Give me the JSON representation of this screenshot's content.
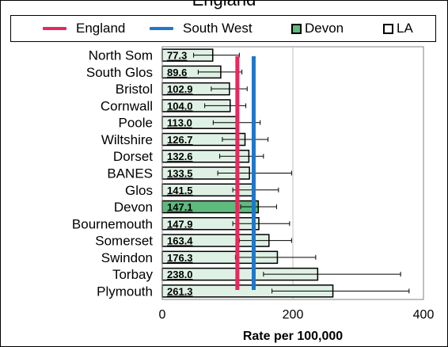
{
  "chart_data": {
    "type": "bar",
    "title": "England",
    "xlabel": "Rate per 100,000",
    "ylabel": "",
    "xlim": [
      0,
      400
    ],
    "xticks": [
      "0",
      "200",
      "400"
    ],
    "legend_position": "top",
    "legend": [
      {
        "label": "England",
        "kind": "line",
        "color": "#e8275e"
      },
      {
        "label": "South West",
        "kind": "line",
        "color": "#1f78c8"
      },
      {
        "label": "Devon",
        "kind": "box",
        "color": "#5fba7d"
      },
      {
        "label": "LA",
        "kind": "box",
        "color": "#ffffff"
      }
    ],
    "categories": [
      "North Som",
      "South Glos",
      "Bristol",
      "Cornwall",
      "Poole",
      "Wiltshire",
      "Dorset",
      "BANES",
      "Glos",
      "Devon",
      "Bournemouth",
      "Somerset",
      "Swindon",
      "Torbay",
      "Plymouth"
    ],
    "values": [
      77.3,
      89.6,
      102.9,
      104.0,
      113.0,
      126.7,
      132.6,
      133.5,
      141.5,
      147.1,
      147.9,
      163.4,
      176.3,
      238.0,
      261.3
    ],
    "labels": [
      "77.3",
      "89.6",
      "102.9",
      "104.0",
      "113.0",
      "126.7",
      "132.6",
      "133.5",
      "141.5",
      "147.1",
      "147.9",
      "163.4",
      "176.3",
      "238.0",
      "261.3"
    ],
    "ci_low": [
      48,
      55,
      75,
      65,
      78,
      92,
      88,
      85,
      108,
      120,
      108,
      118,
      112,
      155,
      168
    ],
    "ci_high": [
      118,
      122,
      130,
      128,
      150,
      162,
      155,
      198,
      178,
      175,
      195,
      198,
      235,
      365,
      378
    ],
    "highlight": "Devon",
    "reference_lines": [
      {
        "name": "England",
        "value": 115,
        "color": "#e8275e"
      },
      {
        "name": "South West",
        "value": 140,
        "color": "#1f78c8"
      }
    ],
    "bar_fill": "#dff1e4",
    "highlight_fill": "#5fba7d",
    "grid": "vertical"
  }
}
